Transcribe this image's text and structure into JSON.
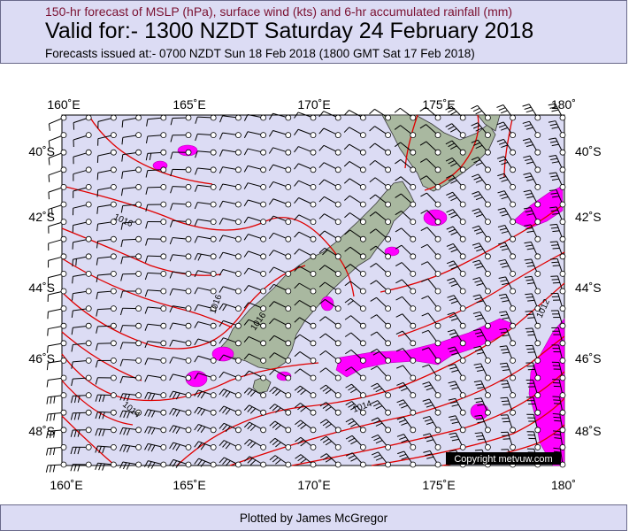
{
  "header": {
    "line1": "150-hr forecast of MSLP (hPa), surface wind (kts) and 6-hr accumulated rainfall (mm)",
    "title": "Valid for:- 1300 NZDT Saturday 24 February 2018",
    "issued": "Forecasts issued at:- 0700 NZDT Sun 18 Feb 2018 (1800 GMT Sat 17 Feb 2018)"
  },
  "footer": {
    "text": "Plotted by James McGregor"
  },
  "map": {
    "lon_labels": [
      "160˚E",
      "165˚E",
      "170˚E",
      "175˚E",
      "180˚"
    ],
    "lat_labels": [
      "40˚S",
      "42˚S",
      "44˚S",
      "46˚S",
      "48˚S"
    ],
    "lon_values": [
      160,
      165,
      170,
      175,
      180
    ],
    "lat_values": [
      -40,
      -42,
      -44,
      -46,
      -48
    ],
    "extent": {
      "lon": [
        160,
        180
      ],
      "lat": [
        -39.2,
        -49.1
      ]
    },
    "isobar_labels": [
      "1016",
      "1016",
      "1016",
      "1014",
      "1014",
      "1012"
    ],
    "copyright": "Copyright metvuw.com",
    "colors": {
      "ocean": "#dcdcf4",
      "land": "#a9b8a0",
      "isobar": "#e00000",
      "rain": "#ff00ff",
      "wind": "#000000"
    }
  }
}
